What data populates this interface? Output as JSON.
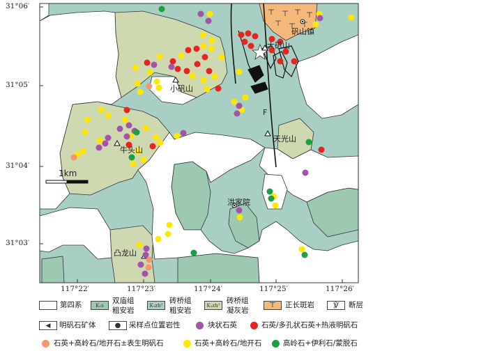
{
  "axes": {
    "lat_ticks": [
      "31°06′",
      "31°05′",
      "31°04′",
      "31°03′"
    ],
    "lon_ticks": [
      "117°22′",
      "117°23′",
      "117°24′",
      "117°25′",
      "117°26′"
    ]
  },
  "scale_bar": "1km",
  "fault_marker": "F",
  "places": {
    "fanshan_town": "矾山镇",
    "dafanshan": "大矾山",
    "xiaofanshan": "小矾山",
    "niutoushan": "牛头山",
    "tianguangshan": "天光山",
    "hongjiayuan": "洪家院",
    "tulongshan": "凸龙山"
  },
  "units": {
    "k1s": "K₁s",
    "k1zh2": "K₁zh²",
    "k1zh1": "K₁zh¹",
    "quaternary": "第四系",
    "shuangmiao_a": "双庙组",
    "shuangmiao_b": "粗安岩",
    "zhuanqiao2_a": "砖桥组",
    "zhuanqiao2_b": "粗安岩",
    "zhuanqiao1_a": "砖桥组",
    "zhuanqiao1_b": "凝灰岩",
    "syenite": "正长斑岩",
    "fault": "断层"
  },
  "legend_symbols": {
    "orebody": "明矾石矿体",
    "sample": "采样点位置岩性",
    "quartz_block": "块状石英",
    "quartz_vuggy": "石英/多孔状石英+热液明矾石",
    "quartz_kaolinite_dickite_supergene": "石英+高岭石/地开石±表生明矾石",
    "quartz_kaolinite_dickite": "石英+高岭石/地开石",
    "kaolinite_illite_montmorillonite": "高岭石+伊利石/蒙脱石"
  },
  "colors": {
    "quaternary": "#ffffff",
    "k1s": "#9dc9b3",
    "k1zh2": "#a9cfc4",
    "k1zh1": "#cfd9b1",
    "syenite": "#f4b97a",
    "purple": "#a254a6",
    "red": "#e52521",
    "salmon": "#f39672",
    "yellow": "#ffe800",
    "green": "#19a040"
  }
}
